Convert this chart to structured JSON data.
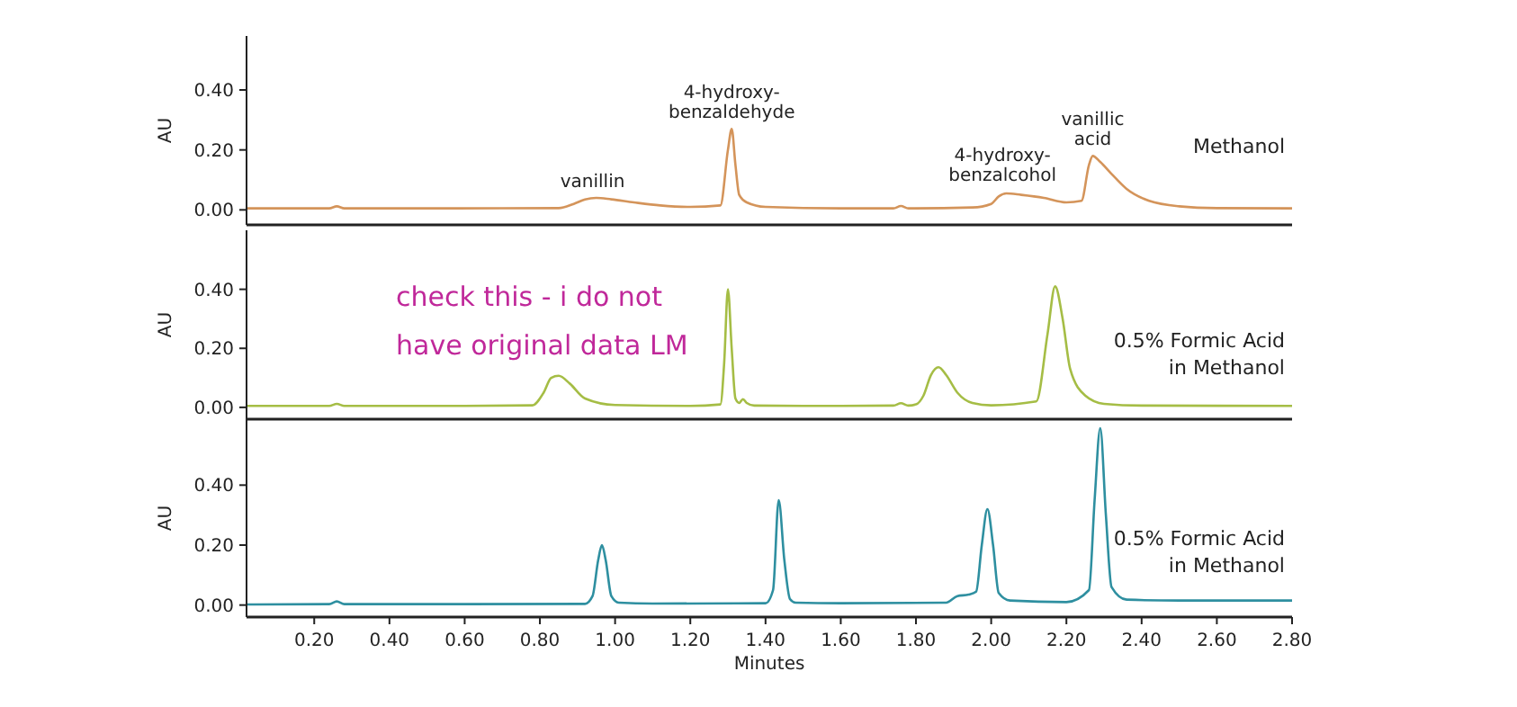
{
  "chart_data": [
    {
      "type": "line",
      "ylabel": "AU",
      "xlim": [
        0.02,
        2.8
      ],
      "ylim": [
        -0.05,
        0.58
      ],
      "tick_labels": "y",
      "grid": false,
      "yticks": [
        {
          "value": 0,
          "label": "0.00"
        },
        {
          "value": 0.2,
          "label": "0.20"
        },
        {
          "value": 0.4,
          "label": "0.40"
        }
      ],
      "annotations": [
        {
          "text": "vanillin",
          "x": 0.94,
          "y": 0.04
        },
        {
          "text": "4-hydroxy-\nbenzaldehyde",
          "x": 1.31,
          "y": 0.27
        },
        {
          "text": "4-hydroxy-\nbenzalcohol",
          "x": 2.03,
          "y": 0.06
        },
        {
          "text": "vanillic\nacid",
          "x": 2.27,
          "y": 0.18
        }
      ],
      "series": [
        {
          "name": "Methanol",
          "color": "#d4945a",
          "x": [
            0.02,
            0.24,
            0.26,
            0.28,
            0.5,
            0.85,
            0.89,
            0.92,
            0.95,
            0.99,
            1.05,
            1.12,
            1.2,
            1.28,
            1.3,
            1.31,
            1.32,
            1.33,
            1.35,
            1.4,
            1.6,
            1.74,
            1.76,
            1.78,
            1.95,
            2.0,
            2.02,
            2.04,
            2.08,
            2.14,
            2.2,
            2.24,
            2.26,
            2.27,
            2.29,
            2.32,
            2.36,
            2.42,
            2.5,
            2.6,
            2.8
          ],
          "values": [
            0.005,
            0.005,
            0.012,
            0.005,
            0.005,
            0.006,
            0.02,
            0.035,
            0.04,
            0.035,
            0.025,
            0.015,
            0.01,
            0.015,
            0.2,
            0.27,
            0.15,
            0.05,
            0.025,
            0.01,
            0.005,
            0.005,
            0.013,
            0.005,
            0.008,
            0.02,
            0.045,
            0.055,
            0.05,
            0.04,
            0.025,
            0.03,
            0.15,
            0.18,
            0.16,
            0.12,
            0.07,
            0.03,
            0.012,
            0.006,
            0.005
          ]
        }
      ]
    },
    {
      "type": "line",
      "ylabel": "AU",
      "xlim": [
        0.02,
        2.8
      ],
      "ylim": [
        -0.04,
        0.6
      ],
      "tick_labels": "y",
      "grid": false,
      "yticks": [
        {
          "value": 0,
          "label": "0.00"
        },
        {
          "value": 0.2,
          "label": "0.20"
        },
        {
          "value": 0.4,
          "label": "0.40"
        }
      ],
      "annotations": [
        "check this - i do not have original data LM"
      ],
      "series": [
        {
          "name": "0.5% Formic Acid in Methanol",
          "color": "#a5bd45",
          "x": [
            0.02,
            0.24,
            0.26,
            0.28,
            0.6,
            0.78,
            0.81,
            0.83,
            0.85,
            0.88,
            0.92,
            1.0,
            1.2,
            1.28,
            1.29,
            1.3,
            1.31,
            1.32,
            1.33,
            1.34,
            1.35,
            1.37,
            1.5,
            1.74,
            1.76,
            1.78,
            1.8,
            1.82,
            1.84,
            1.86,
            1.88,
            1.91,
            1.95,
            2.0,
            2.12,
            2.15,
            2.17,
            2.19,
            2.21,
            2.25,
            2.3,
            2.4,
            2.8
          ],
          "values": [
            0.005,
            0.005,
            0.012,
            0.005,
            0.005,
            0.007,
            0.05,
            0.1,
            0.107,
            0.08,
            0.03,
            0.008,
            0.005,
            0.01,
            0.15,
            0.4,
            0.2,
            0.03,
            0.015,
            0.028,
            0.015,
            0.006,
            0.005,
            0.006,
            0.014,
            0.006,
            0.01,
            0.04,
            0.11,
            0.136,
            0.11,
            0.05,
            0.015,
            0.007,
            0.02,
            0.25,
            0.41,
            0.3,
            0.13,
            0.04,
            0.012,
            0.006,
            0.005
          ]
        }
      ]
    },
    {
      "type": "line",
      "ylabel": "AU",
      "xlabel": "Minutes",
      "xlim": [
        0.02,
        2.8
      ],
      "ylim": [
        -0.04,
        0.62
      ],
      "grid": false,
      "xticks": [
        {
          "value": 0.2,
          "label": "0.20"
        },
        {
          "value": 0.4,
          "label": "0.40"
        },
        {
          "value": 0.6,
          "label": "0.60"
        },
        {
          "value": 0.8,
          "label": "0.80"
        },
        {
          "value": 1.0,
          "label": "1.00"
        },
        {
          "value": 1.2,
          "label": "1.20"
        },
        {
          "value": 1.4,
          "label": "1.40"
        },
        {
          "value": 1.6,
          "label": "1.60"
        },
        {
          "value": 1.8,
          "label": "1.80"
        },
        {
          "value": 2.0,
          "label": "2.00"
        },
        {
          "value": 2.2,
          "label": "2.20"
        },
        {
          "value": 2.4,
          "label": "2.40"
        },
        {
          "value": 2.6,
          "label": "2.60"
        },
        {
          "value": 2.8,
          "label": "2.80"
        }
      ],
      "yticks": [
        {
          "value": 0,
          "label": "0.00"
        },
        {
          "value": 0.2,
          "label": "0.20"
        },
        {
          "value": 0.4,
          "label": "0.40"
        }
      ],
      "series": [
        {
          "name": "0.5% Formic Acid in Methanol",
          "color": "#2e8fa0",
          "x": [
            0.02,
            0.24,
            0.26,
            0.28,
            0.6,
            0.92,
            0.94,
            0.955,
            0.965,
            0.975,
            0.99,
            1.01,
            1.1,
            1.4,
            1.42,
            1.435,
            1.45,
            1.465,
            1.48,
            1.6,
            1.88,
            1.91,
            1.94,
            1.96,
            1.975,
            1.99,
            2.005,
            2.02,
            2.05,
            2.2,
            2.26,
            2.275,
            2.29,
            2.305,
            2.32,
            2.36,
            2.5,
            2.8
          ],
          "values": [
            0.002,
            0.003,
            0.012,
            0.003,
            0.003,
            0.004,
            0.03,
            0.15,
            0.2,
            0.15,
            0.03,
            0.008,
            0.005,
            0.006,
            0.05,
            0.35,
            0.15,
            0.02,
            0.008,
            0.006,
            0.008,
            0.03,
            0.035,
            0.045,
            0.2,
            0.32,
            0.2,
            0.04,
            0.015,
            0.01,
            0.05,
            0.35,
            0.59,
            0.3,
            0.06,
            0.018,
            0.015,
            0.015
          ]
        }
      ]
    }
  ]
}
